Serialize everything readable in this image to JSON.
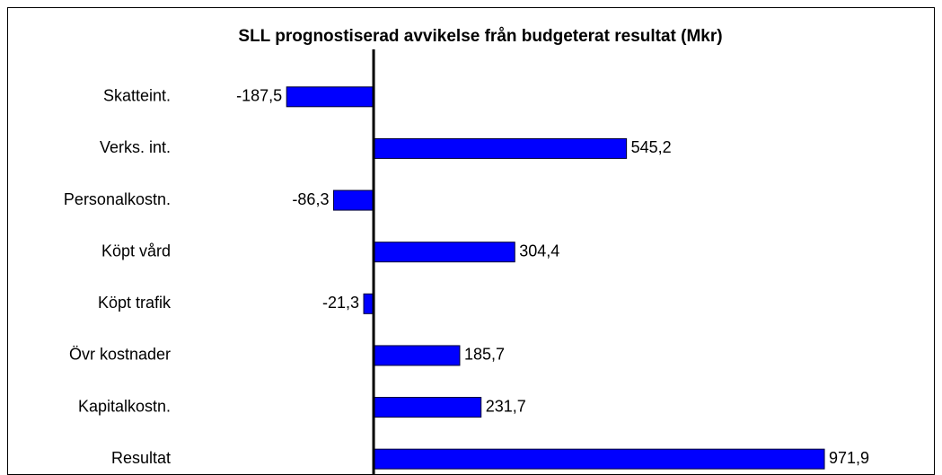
{
  "chart_data": {
    "type": "bar",
    "orientation": "horizontal",
    "title": "SLL prognostiserad avvikelse från budgeterat resultat (Mkr)",
    "categories": [
      "Skatteint.",
      "Verks. int.",
      "Personalkostn.",
      "Köpt vård",
      "Köpt trafik",
      "Övr kostnader",
      "Kapitalkostn.",
      "Resultat"
    ],
    "values": [
      -187.5,
      545.2,
      -86.3,
      304.4,
      -21.3,
      185.7,
      231.7,
      971.9
    ],
    "value_labels": [
      "-187,5",
      "545,2",
      "-86,3",
      "304,4",
      "-21,3",
      "185,7",
      "231,7",
      "971,9"
    ],
    "color": "#0000ff",
    "xlim": [
      -790,
      1210
    ]
  }
}
